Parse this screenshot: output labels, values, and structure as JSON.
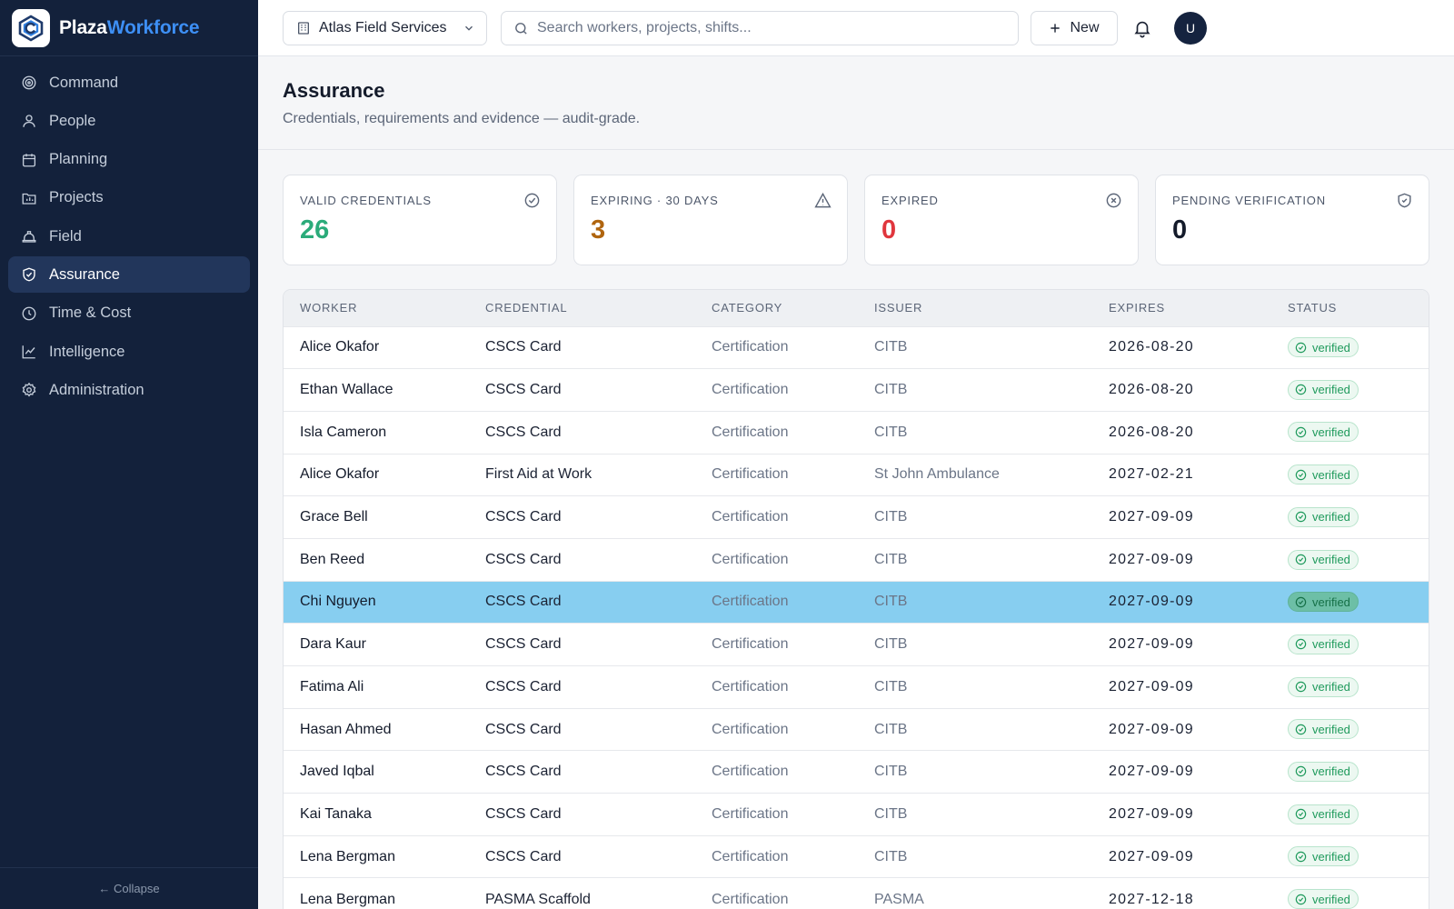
{
  "brand": {
    "name_a": "Plaza",
    "name_b": "Workforce"
  },
  "sidebar": {
    "items": [
      {
        "label": "Command",
        "icon": "target-icon"
      },
      {
        "label": "People",
        "icon": "user-icon"
      },
      {
        "label": "Planning",
        "icon": "calendar-icon"
      },
      {
        "label": "Projects",
        "icon": "folder-chart-icon"
      },
      {
        "label": "Field",
        "icon": "hard-hat-icon"
      },
      {
        "label": "Assurance",
        "icon": "shield-check-icon",
        "active": true
      },
      {
        "label": "Time & Cost",
        "icon": "clock-icon"
      },
      {
        "label": "Intelligence",
        "icon": "line-chart-icon"
      },
      {
        "label": "Administration",
        "icon": "gear-icon"
      }
    ],
    "collapse_label": "← Collapse"
  },
  "topbar": {
    "org": "Atlas Field Services",
    "search_placeholder": "Search workers, projects, shifts...",
    "new_label": "New",
    "avatar_initial": "U"
  },
  "page": {
    "title": "Assurance",
    "subtitle": "Credentials, requirements and evidence — audit-grade."
  },
  "stats": [
    {
      "label": "VALID CREDENTIALS",
      "value": "26",
      "color": "#2bab7a",
      "icon": "check-circle-icon"
    },
    {
      "label": "EXPIRING · 30 DAYS",
      "value": "3",
      "color": "#b0650f",
      "icon": "warning-triangle-icon"
    },
    {
      "label": "EXPIRED",
      "value": "0",
      "color": "#e0363d",
      "icon": "x-circle-icon"
    },
    {
      "label": "PENDING VERIFICATION",
      "value": "0",
      "color": "#141b2b",
      "icon": "shield-icon"
    }
  ],
  "table": {
    "columns": [
      "WORKER",
      "CREDENTIAL",
      "CATEGORY",
      "ISSUER",
      "EXPIRES",
      "STATUS"
    ],
    "rows": [
      {
        "worker": "Alice Okafor",
        "credential": "CSCS Card",
        "category": "Certification",
        "issuer": "CITB",
        "expires": "2026-08-20",
        "status": "verified"
      },
      {
        "worker": "Ethan Wallace",
        "credential": "CSCS Card",
        "category": "Certification",
        "issuer": "CITB",
        "expires": "2026-08-20",
        "status": "verified"
      },
      {
        "worker": "Isla Cameron",
        "credential": "CSCS Card",
        "category": "Certification",
        "issuer": "CITB",
        "expires": "2026-08-20",
        "status": "verified"
      },
      {
        "worker": "Alice Okafor",
        "credential": "First Aid at Work",
        "category": "Certification",
        "issuer": "St John Ambulance",
        "expires": "2027-02-21",
        "status": "verified"
      },
      {
        "worker": "Grace Bell",
        "credential": "CSCS Card",
        "category": "Certification",
        "issuer": "CITB",
        "expires": "2027-09-09",
        "status": "verified"
      },
      {
        "worker": "Ben Reed",
        "credential": "CSCS Card",
        "category": "Certification",
        "issuer": "CITB",
        "expires": "2027-09-09",
        "status": "verified"
      },
      {
        "worker": "Chi Nguyen",
        "credential": "CSCS Card",
        "category": "Certification",
        "issuer": "CITB",
        "expires": "2027-09-09",
        "status": "verified",
        "selected": true
      },
      {
        "worker": "Dara Kaur",
        "credential": "CSCS Card",
        "category": "Certification",
        "issuer": "CITB",
        "expires": "2027-09-09",
        "status": "verified"
      },
      {
        "worker": "Fatima Ali",
        "credential": "CSCS Card",
        "category": "Certification",
        "issuer": "CITB",
        "expires": "2027-09-09",
        "status": "verified"
      },
      {
        "worker": "Hasan Ahmed",
        "credential": "CSCS Card",
        "category": "Certification",
        "issuer": "CITB",
        "expires": "2027-09-09",
        "status": "verified"
      },
      {
        "worker": "Javed Iqbal",
        "credential": "CSCS Card",
        "category": "Certification",
        "issuer": "CITB",
        "expires": "2027-09-09",
        "status": "verified"
      },
      {
        "worker": "Kai Tanaka",
        "credential": "CSCS Card",
        "category": "Certification",
        "issuer": "CITB",
        "expires": "2027-09-09",
        "status": "verified"
      },
      {
        "worker": "Lena Bergman",
        "credential": "CSCS Card",
        "category": "Certification",
        "issuer": "CITB",
        "expires": "2027-09-09",
        "status": "verified"
      },
      {
        "worker": "Lena Bergman",
        "credential": "PASMA Scaffold",
        "category": "Certification",
        "issuer": "PASMA",
        "expires": "2027-12-18",
        "status": "verified"
      }
    ]
  }
}
